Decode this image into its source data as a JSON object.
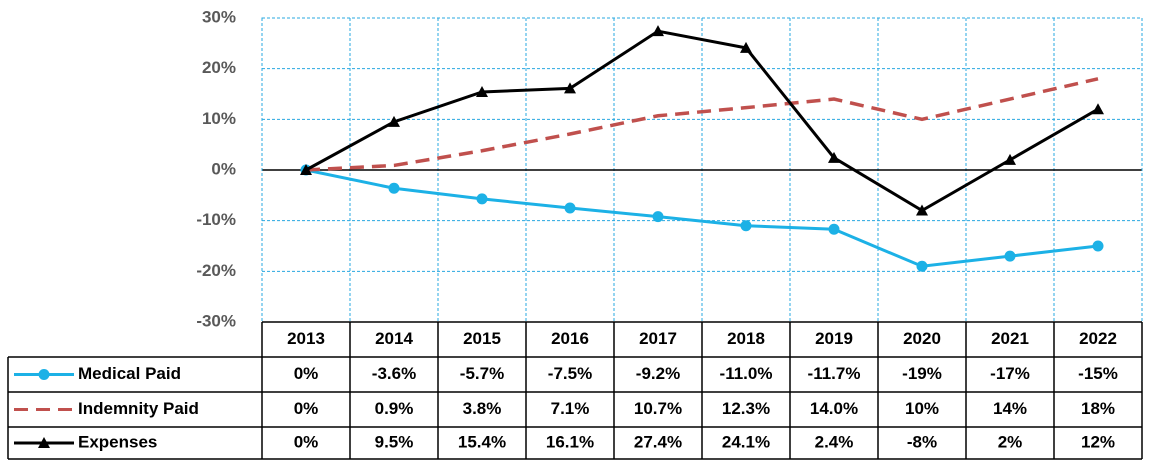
{
  "chart_data": {
    "type": "line",
    "categories": [
      "2013",
      "2014",
      "2015",
      "2016",
      "2017",
      "2018",
      "2019",
      "2020",
      "2021",
      "2022"
    ],
    "series": [
      {
        "name": "Medical Paid",
        "color": "#1cb1e6",
        "dash": false,
        "marker": "circle",
        "values": [
          0,
          -3.6,
          -5.7,
          -7.5,
          -9.2,
          -11.0,
          -11.7,
          -19,
          -17,
          -15
        ],
        "value_labels": [
          "0%",
          "-3.6%",
          "-5.7%",
          "-7.5%",
          "-9.2%",
          "-11.0%",
          "-11.7%",
          "-19%",
          "-17%",
          "-15%"
        ]
      },
      {
        "name": "Indemnity Paid",
        "color": "#c0504d",
        "dash": true,
        "marker": "none",
        "values": [
          0,
          0.9,
          3.8,
          7.1,
          10.7,
          12.3,
          14.0,
          10,
          14,
          18
        ],
        "value_labels": [
          "0%",
          "0.9%",
          "3.8%",
          "7.1%",
          "10.7%",
          "12.3%",
          "14.0%",
          "10%",
          "14%",
          "18%"
        ]
      },
      {
        "name": "Expenses",
        "color": "#000000",
        "dash": false,
        "marker": "triangle",
        "values": [
          0,
          9.5,
          15.4,
          16.1,
          27.4,
          24.1,
          2.4,
          -8,
          2,
          12
        ],
        "value_labels": [
          "0%",
          "9.5%",
          "15.4%",
          "16.1%",
          "27.4%",
          "24.1%",
          "2.4%",
          "-8%",
          "2%",
          "12%"
        ]
      }
    ],
    "ylim": [
      -30,
      30
    ],
    "yticks": [
      {
        "value": -30,
        "label": "-30%"
      },
      {
        "value": -20,
        "label": "-20%"
      },
      {
        "value": -10,
        "label": "-10%"
      },
      {
        "value": 0,
        "label": "0%"
      },
      {
        "value": 10,
        "label": "10%"
      },
      {
        "value": 20,
        "label": "20%"
      },
      {
        "value": 30,
        "label": "30%"
      }
    ],
    "grid": true
  }
}
